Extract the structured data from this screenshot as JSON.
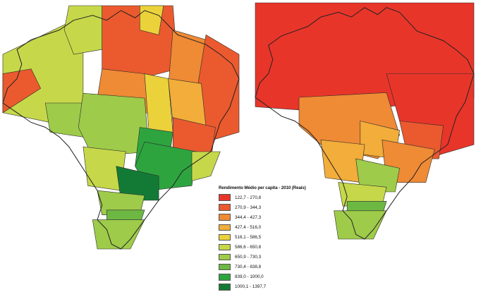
{
  "legend": {
    "title": "Rendimento Médio per capita - 2010 (Reais)",
    "classes": [
      {
        "label": "122,7 - 270,8",
        "color": "#e8352a"
      },
      {
        "label": "270,9 - 344,3",
        "color": "#ea5a2e"
      },
      {
        "label": "344,4 - 427,3",
        "color": "#ef8a35"
      },
      {
        "label": "427,4 - 516,0",
        "color": "#f2ad3a"
      },
      {
        "label": "516,1 - 586,5",
        "color": "#ebd23a"
      },
      {
        "label": "586,6 - 650,8",
        "color": "#c6d84a"
      },
      {
        "label": "650,9 - 730,3",
        "color": "#9ecb4a"
      },
      {
        "label": "730,4 - 838,8",
        "color": "#6db843"
      },
      {
        "label": "839,0 - 1000,0",
        "color": "#2ea43f"
      },
      {
        "label": "1000,1 - 1397,7",
        "color": "#137a36"
      }
    ]
  },
  "maps": [
    {
      "name": "left-map",
      "region_classes": {
        "amazonas-west": 5,
        "acre": 1,
        "roraima": 5,
        "amapa": 4,
        "para-north": 1,
        "para-south": 2,
        "northeast-coast": 1,
        "maranhao": 2,
        "piaui": 3,
        "bahia": 1,
        "tocantins": 4,
        "mato-grosso": 6,
        "rondonia": 6,
        "goias": 8,
        "minas-gerais": 8,
        "sao-paulo": 9,
        "parana": 6,
        "santa-catarina": 7,
        "rio-grande-do-sul": 6,
        "mato-grosso-do-sul": 5,
        "espirito-santo": 5
      }
    },
    {
      "name": "right-map",
      "region_classes": {
        "north": 0,
        "northeast": 0,
        "centre": 2,
        "goias": 3,
        "minas-gerais": 2,
        "sao-paulo": 6,
        "parana": 5,
        "santa-catarina": 7,
        "rio-grande-do-sul": 6,
        "mato-grosso-do-sul": 3,
        "bahia": 1
      }
    }
  ]
}
